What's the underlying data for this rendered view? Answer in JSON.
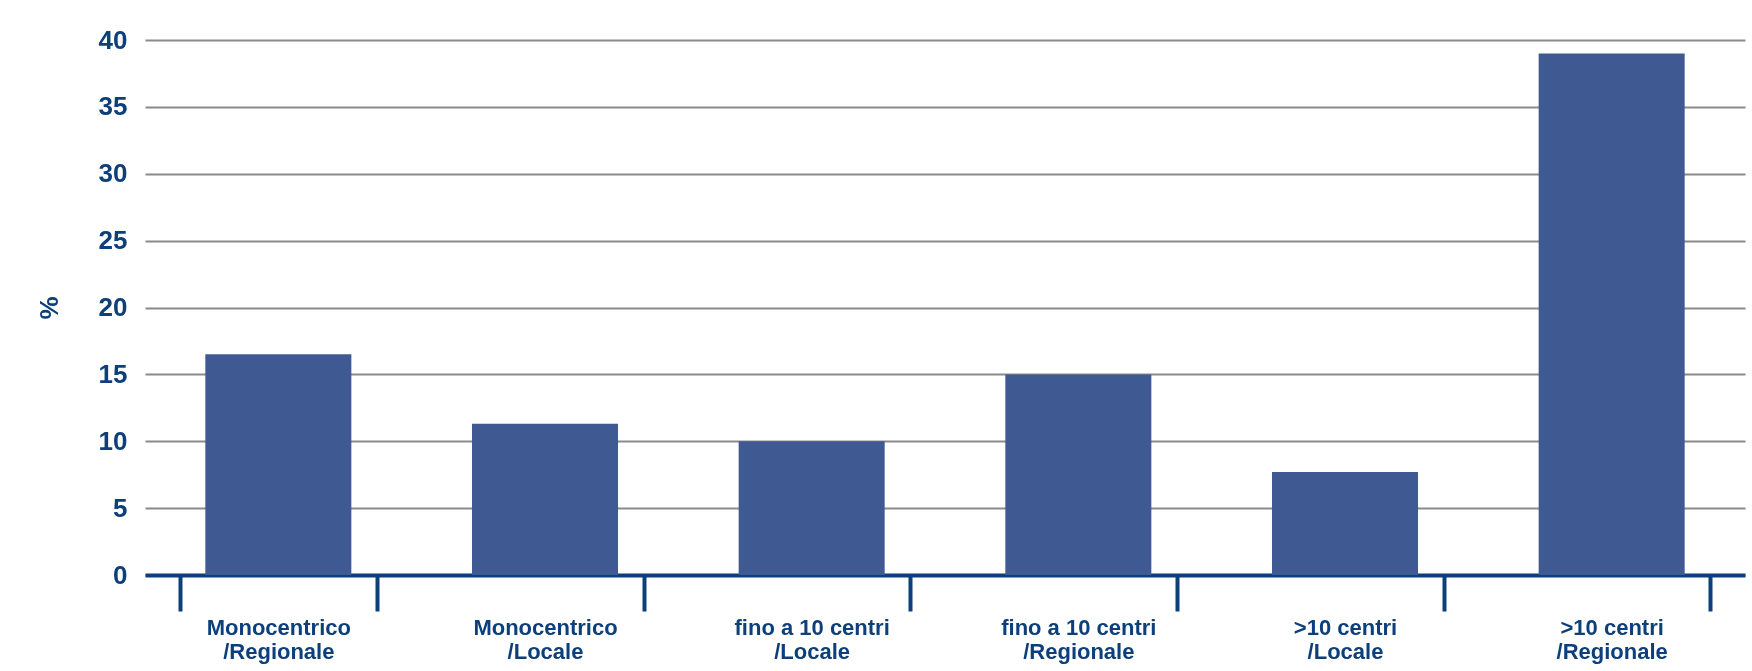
{
  "chart_data": {
    "type": "bar",
    "ylabel": "%",
    "categories": [
      "Monocentrico\n/Regionale",
      "Monocentrico\n/Locale",
      "fino a 10 centri\n/Locale",
      "fino a 10 centri\n/Regionale",
      ">10 centri\n/Locale",
      ">10 centri\n/Regionale"
    ],
    "values": [
      16.5,
      11.3,
      10.0,
      15.0,
      7.7,
      39.0
    ],
    "color": "#3f5a92",
    "ylim": [
      0,
      40
    ],
    "yticks": [
      0,
      5,
      10,
      15,
      20,
      25,
      30,
      35,
      40
    ],
    "grid": "y"
  }
}
